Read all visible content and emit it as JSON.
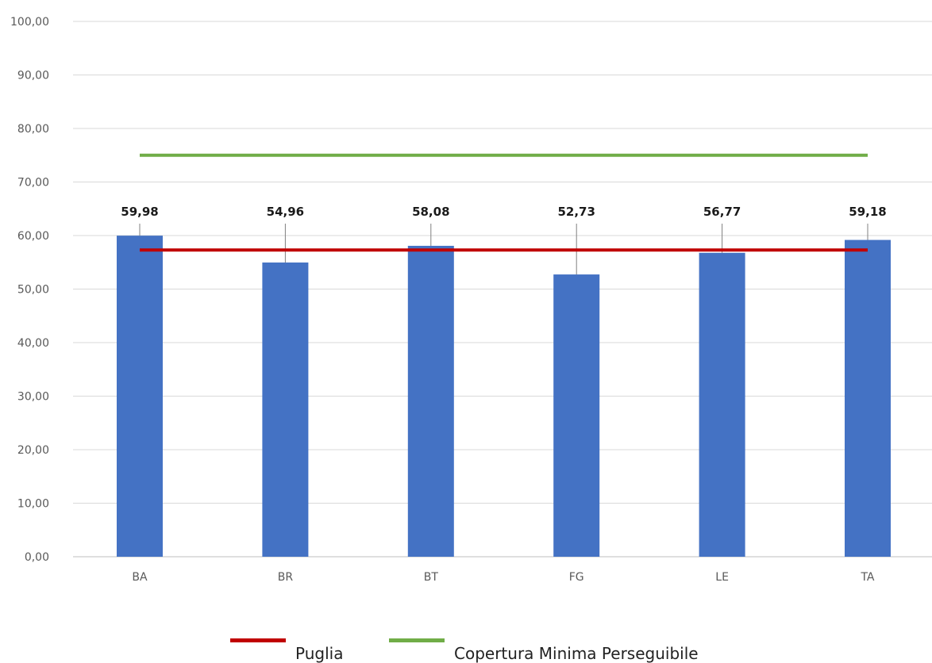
{
  "chart_data": {
    "type": "bar",
    "categories": [
      "BA",
      "BR",
      "BT",
      "FG",
      "LE",
      "TA"
    ],
    "values": [
      59.98,
      54.96,
      58.08,
      52.73,
      56.77,
      59.18
    ],
    "value_labels": [
      "59,98",
      "54,96",
      "58,08",
      "52,73",
      "56,77",
      "59,18"
    ],
    "ylim": [
      0,
      100
    ],
    "yticks": [
      "0,00",
      "10,00",
      "20,00",
      "30,00",
      "40,00",
      "50,00",
      "60,00",
      "70,00",
      "80,00",
      "90,00",
      "100,00"
    ],
    "grid": true,
    "bar_color": "#4472C4",
    "reference_lines": [
      {
        "name": "Puglia",
        "value": 57.3,
        "color": "#C00000"
      },
      {
        "name": "Copertura Minima Perseguibile",
        "value": 75,
        "color": "#70AD47"
      }
    ],
    "legend_position": "bottom"
  }
}
